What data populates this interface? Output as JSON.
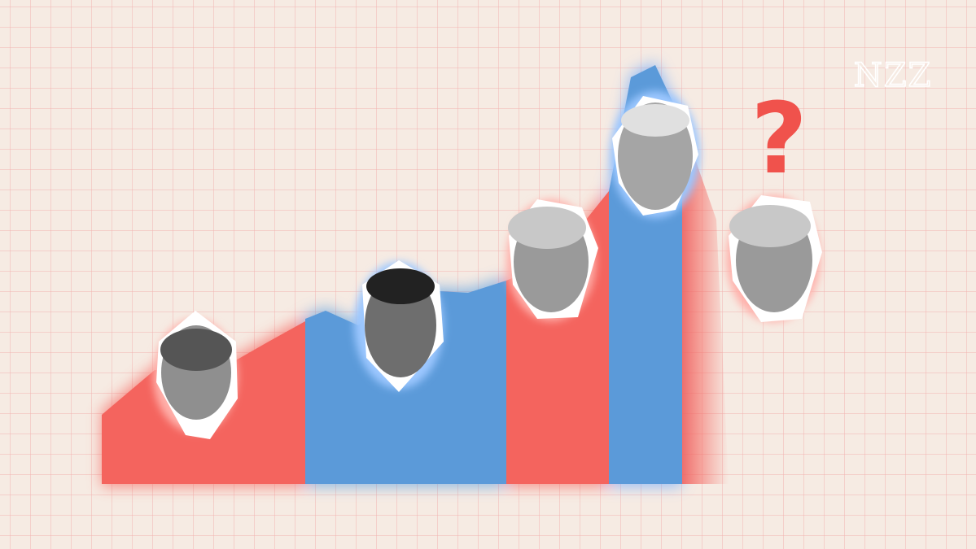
{
  "logo": "NZZ",
  "question_mark": "?"
}
